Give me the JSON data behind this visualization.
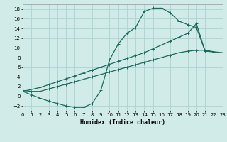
{
  "xlabel": "Humidex (Indice chaleur)",
  "bg_color": "#d0ebe8",
  "grid_color": "#aad4d0",
  "line_color": "#1a6b5a",
  "xlim": [
    0,
    23
  ],
  "ylim": [
    -3,
    19
  ],
  "xticks": [
    0,
    1,
    2,
    3,
    4,
    5,
    6,
    7,
    8,
    9,
    10,
    11,
    12,
    13,
    14,
    15,
    16,
    17,
    18,
    19,
    20,
    21,
    22,
    23
  ],
  "yticks": [
    -2,
    0,
    2,
    4,
    6,
    8,
    10,
    12,
    14,
    16,
    18
  ],
  "curve1_x": [
    0,
    1,
    2,
    3,
    4,
    5,
    6,
    7,
    8,
    9,
    10,
    11,
    12,
    13,
    14,
    15,
    16,
    17,
    18,
    19,
    20,
    21,
    22
  ],
  "curve1_y": [
    1.0,
    0.3,
    -0.4,
    -1.0,
    -1.5,
    -2.0,
    -2.3,
    -2.3,
    -1.5,
    1.2,
    7.5,
    10.8,
    13.0,
    14.2,
    17.5,
    18.2,
    18.2,
    17.2,
    15.5,
    14.8,
    14.2,
    9.3,
    9.2
  ],
  "curve2_x": [
    0,
    2,
    3,
    4,
    5,
    6,
    7,
    8,
    9,
    10,
    11,
    12,
    13,
    14,
    15,
    16,
    17,
    18,
    19,
    20,
    21,
    22
  ],
  "curve2_y": [
    1.0,
    1.8,
    2.4,
    3.0,
    3.6,
    4.2,
    4.8,
    5.4,
    6.0,
    6.6,
    7.2,
    7.8,
    8.4,
    9.0,
    9.8,
    10.6,
    11.4,
    12.2,
    13.0,
    15.0,
    9.3,
    9.2
  ],
  "curve3_x": [
    0,
    1,
    2,
    3,
    4,
    5,
    6,
    7,
    8,
    9,
    10,
    11,
    12,
    13,
    14,
    15,
    16,
    17,
    18,
    19,
    20,
    21,
    22,
    23
  ],
  "curve3_y": [
    1.2,
    1.0,
    1.0,
    1.5,
    2.0,
    2.5,
    3.0,
    3.5,
    4.0,
    4.5,
    5.0,
    5.5,
    6.0,
    6.5,
    7.0,
    7.5,
    8.0,
    8.5,
    9.0,
    9.3,
    9.5,
    9.5,
    9.2,
    9.0
  ]
}
